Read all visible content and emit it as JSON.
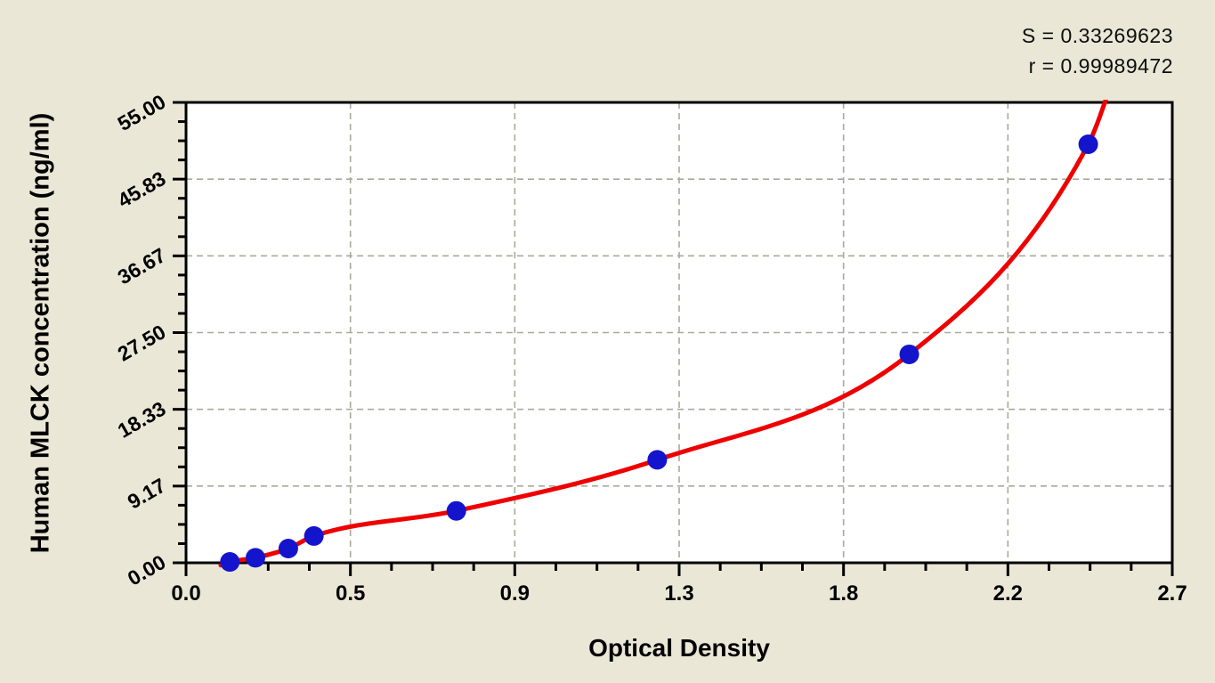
{
  "annotations": {
    "s_value": "S = 0.33269623",
    "r_value": "r = 0.99989472"
  },
  "chart_data": {
    "type": "scatter",
    "title": "",
    "xlabel": "Optical Density",
    "ylabel": "Human MLCK concentration (ng/ml)",
    "xlim": [
      0,
      2.7
    ],
    "ylim": [
      0,
      55
    ],
    "x_tick_labels": [
      "0.0",
      "0.5",
      "0.9",
      "1.3",
      "1.8",
      "2.2",
      "2.7"
    ],
    "y_tick_labels": [
      "0.00",
      "9.17",
      "18.33",
      "27.50",
      "36.67",
      "45.83",
      "55.00"
    ],
    "x_major_divisions": 6,
    "y_major_divisions": 6,
    "minor_ticks_per_division": 3,
    "grid": {
      "show": true,
      "style": "dashed",
      "color": "#a9a99b"
    },
    "legend_position": "none",
    "series": [
      {
        "name": "standard-points",
        "marker": "circle",
        "color": "#1414cd",
        "points": [
          {
            "od": 0.12,
            "conc": 0.1
          },
          {
            "od": 0.19,
            "conc": 0.6
          },
          {
            "od": 0.28,
            "conc": 1.7
          },
          {
            "od": 0.35,
            "conc": 3.2
          },
          {
            "od": 0.74,
            "conc": 6.2
          },
          {
            "od": 1.29,
            "conc": 12.3
          },
          {
            "od": 1.98,
            "conc": 24.9
          },
          {
            "od": 2.47,
            "conc": 50.0
          }
        ]
      }
    ],
    "fit_curve": {
      "name": "regression-curve",
      "color": "#ee0000",
      "anchors": [
        [
          0.095,
          -0.3
        ],
        [
          0.12,
          0.1
        ],
        [
          0.19,
          0.6
        ],
        [
          0.28,
          1.7
        ],
        [
          0.35,
          3.2
        ],
        [
          0.74,
          6.2
        ],
        [
          1.29,
          12.3
        ],
        [
          1.98,
          24.9
        ],
        [
          2.47,
          50.0
        ],
        [
          2.54,
          58.0
        ]
      ]
    },
    "colors": {
      "page_background": "#eae7d7",
      "plot_background": "#ffffff",
      "axis": "#000000",
      "grid": "#a9a99b",
      "curve": "#ee0000",
      "points": "#1414cd",
      "text": "#000000"
    }
  }
}
